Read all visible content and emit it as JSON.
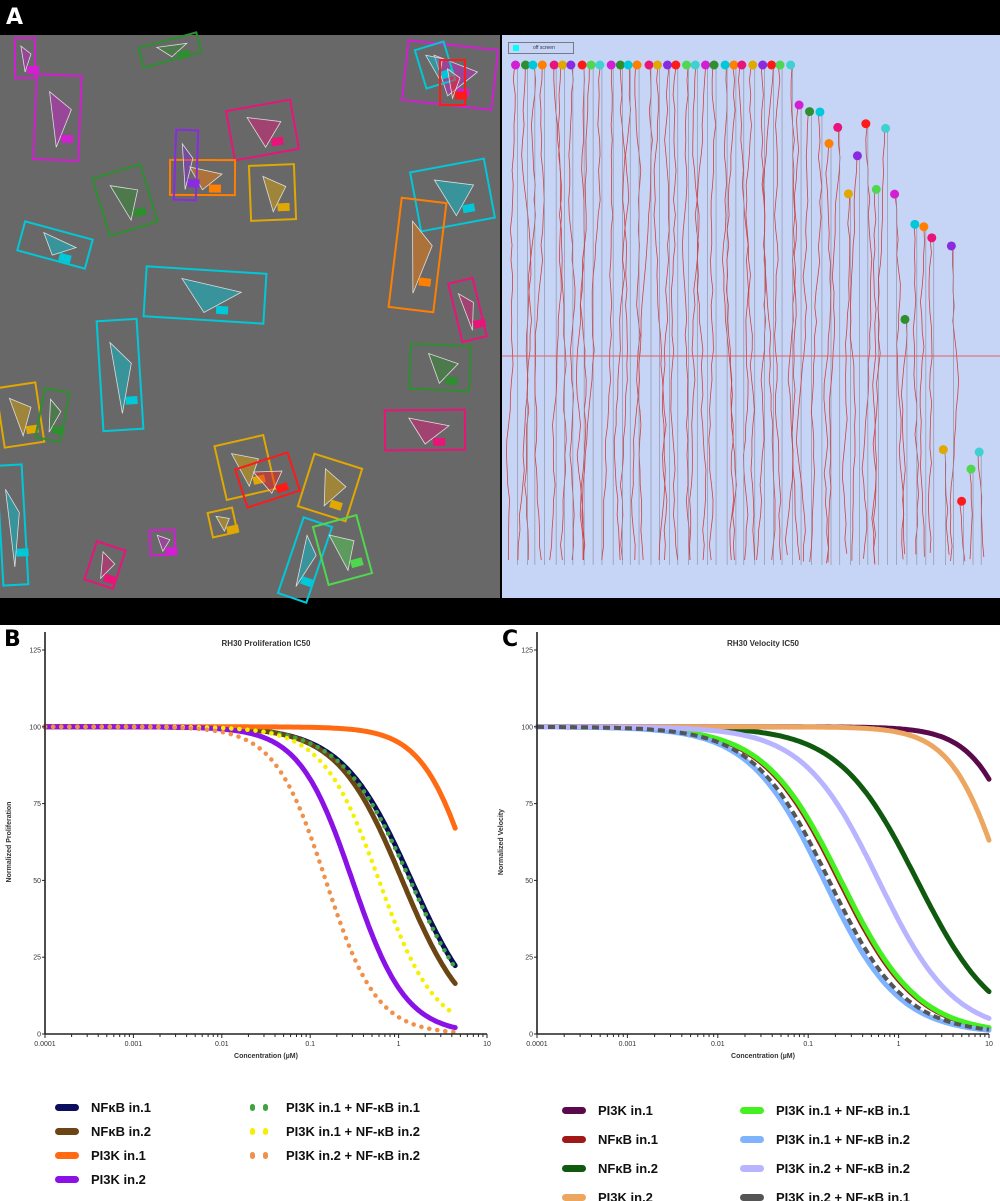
{
  "panel_labels": {
    "a": "A",
    "b": "B",
    "c": "C"
  },
  "panel_a": {
    "legend_text": "off screen",
    "microscopy_bg": "#686868",
    "track_bg": "#c6d4f6",
    "box_colors": [
      "#d21fd2",
      "#2d8f2d",
      "#00c8d8",
      "#ff7f00",
      "#e8147a",
      "#e0a800",
      "#8a2be2",
      "#ff1a1a",
      "#4fd84f",
      "#40d0d0"
    ]
  },
  "chart_data": [
    {
      "type": "line",
      "id": "B",
      "title": "RH30 Proliferation IC50",
      "xlabel": "Concentration (µM)",
      "ylabel": "Normalized Proliferation",
      "xscale": "log",
      "xlim": [
        0.0001,
        10
      ],
      "ylim": [
        0,
        125
      ],
      "xticks": [
        "0.0001",
        "0.001",
        "0.01",
        "0.1",
        "1",
        "10"
      ],
      "yticks": [
        "0",
        "25",
        "50",
        "75",
        "100",
        "125"
      ],
      "grid": false,
      "legend_position": "bottom",
      "x_end": 4.5,
      "series": [
        {
          "name": "NFκB in.1",
          "color": "#0d0d5e",
          "style": "solid",
          "ic50": 1.4,
          "hill": 1.1,
          "top": 100
        },
        {
          "name": "NFκB in.2",
          "color": "#6b4513",
          "style": "solid",
          "ic50": 1.1,
          "hill": 1.18,
          "top": 100
        },
        {
          "name": "PI3K in.1",
          "color": "#ff6a13",
          "style": "solid",
          "ic50": 7,
          "hill": 1.5,
          "top": 100
        },
        {
          "name": "PI3K in.2",
          "color": "#8a12e6",
          "style": "solid",
          "ic50": 0.3,
          "hill": 1.44,
          "top": 100
        },
        {
          "name": "PI3K in.1 + NF-κB in.1",
          "color": "#3fa33f",
          "style": "dotted",
          "ic50": 1.35,
          "hill": 1.1,
          "top": 100
        },
        {
          "name": "PI3K in.1 + NF-κB in.2",
          "color": "#f5f000",
          "style": "dotted",
          "ic50": 0.6,
          "hill": 1.36,
          "top": 100
        },
        {
          "name": "PI3K in.2 + NF-κB in.2",
          "color": "#f0904a",
          "style": "dotted",
          "ic50": 0.15,
          "hill": 1.5,
          "top": 100
        }
      ]
    },
    {
      "type": "line",
      "id": "C",
      "title": "RH30 Velocity IC50",
      "xlabel": "Concentration (µM)",
      "ylabel": "Normalized Velocity",
      "xscale": "log",
      "xlim": [
        0.0001,
        10
      ],
      "ylim": [
        0,
        125
      ],
      "xticks": [
        "0.0001",
        "0.001",
        "0.01",
        "0.1",
        "1",
        "10"
      ],
      "yticks": [
        "0",
        "25",
        "50",
        "75",
        "100",
        "125"
      ],
      "grid": false,
      "legend_position": "bottom",
      "x_end": 10,
      "series": [
        {
          "name": "PI3K in.1",
          "color": "#5a0a4a",
          "style": "solid",
          "ic50": 28.7,
          "hill": 1.5,
          "top": 100
        },
        {
          "name": "NFκB in.1",
          "color": "#a01818",
          "style": "solid",
          "ic50": 0.22,
          "hill": 1.02,
          "top": 100
        },
        {
          "name": "NFκB in.2",
          "color": "#0f5a0f",
          "style": "solid",
          "ic50": 1.6,
          "hill": 1.0,
          "top": 100
        },
        {
          "name": "PI3K in.2",
          "color": "#eda660",
          "style": "solid",
          "ic50": 14.3,
          "hill": 1.5,
          "top": 100
        },
        {
          "name": "PI3K in.1 + NF-κB in.1",
          "color": "#44f020",
          "style": "solid",
          "ic50": 0.23,
          "hill": 1.02,
          "top": 100
        },
        {
          "name": "PI3K in.1 + NF-κB in.2",
          "color": "#7fb2ff",
          "style": "solid",
          "ic50": 0.15,
          "hill": 1.05,
          "top": 100
        },
        {
          "name": "PI3K in.2 + NF-κB in.2",
          "color": "#b9b4ff",
          "style": "solid",
          "ic50": 0.6,
          "hill": 1.04,
          "top": 100
        },
        {
          "name": "PI3K in.2 + NF-κB in.1",
          "color": "#555555",
          "style": "dashed",
          "ic50": 0.17,
          "hill": 1.04,
          "top": 100
        }
      ]
    }
  ]
}
